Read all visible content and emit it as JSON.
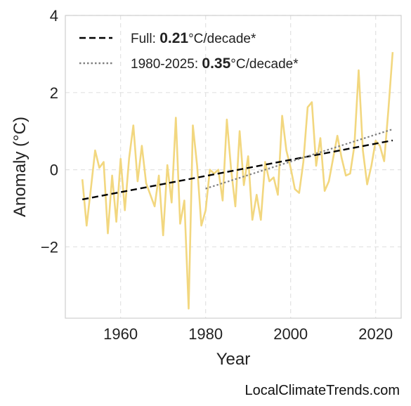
{
  "chart_data": {
    "type": "line",
    "xlabel": "Year",
    "ylabel": "Anomaly (°C)",
    "xlim": [
      1947,
      2026
    ],
    "ylim": [
      -3.85,
      4
    ],
    "xticks": [
      1960,
      1980,
      2000,
      2020
    ],
    "yticks": [
      -2,
      0,
      2,
      4
    ],
    "ytick_labels": [
      "−2",
      "0",
      "2",
      "4"
    ],
    "grid": true,
    "legend_position": "top-left",
    "series": [
      {
        "style": "line",
        "color": "#f2d77f",
        "x": [
          1951,
          1952,
          1953,
          1954,
          1955,
          1956,
          1957,
          1958,
          1959,
          1960,
          1961,
          1962,
          1963,
          1964,
          1965,
          1966,
          1967,
          1968,
          1969,
          1970,
          1971,
          1972,
          1973,
          1974,
          1975,
          1976,
          1977,
          1978,
          1979,
          1980,
          1981,
          1982,
          1983,
          1984,
          1985,
          1986,
          1987,
          1988,
          1989,
          1990,
          1991,
          1992,
          1993,
          1994,
          1995,
          1996,
          1997,
          1998,
          1999,
          2000,
          2001,
          2002,
          2003,
          2004,
          2005,
          2006,
          2007,
          2008,
          2009,
          2010,
          2011,
          2012,
          2013,
          2014,
          2015,
          2016,
          2017,
          2018,
          2019,
          2020,
          2021,
          2022,
          2023,
          2024
        ],
        "y": [
          -0.25,
          -1.45,
          -0.5,
          0.5,
          0.05,
          0.2,
          -1.65,
          -0.15,
          -1.35,
          0.28,
          -1.05,
          0.3,
          1.15,
          -0.3,
          0.62,
          -0.35,
          -0.65,
          -0.95,
          -0.15,
          -1.7,
          0.12,
          -0.85,
          1.35,
          -1.4,
          -0.8,
          -3.6,
          1.15,
          0.1,
          -1.45,
          -1.05,
          0.0,
          -0.1,
          0.0,
          -0.8,
          1.3,
          0.0,
          -0.95,
          1.0,
          -0.4,
          0.35,
          -1.3,
          -0.65,
          -1.3,
          0.2,
          -0.3,
          -0.2,
          -0.65,
          1.4,
          0.5,
          0.05,
          -0.5,
          -0.6,
          0.2,
          1.62,
          1.75,
          0.1,
          0.82,
          -0.55,
          -0.3,
          0.3,
          0.88,
          0.3,
          -0.15,
          -0.1,
          0.62,
          2.58,
          0.5,
          -0.38,
          0.1,
          0.75,
          0.62,
          0.22,
          1.55,
          3.05
        ]
      }
    ],
    "trend_lines": [
      {
        "style": "dashed",
        "color": "#000000",
        "x": [
          1951,
          2024
        ],
        "y": [
          -0.77,
          0.76
        ]
      },
      {
        "style": "dotted",
        "color": "#808080",
        "x": [
          1980,
          2024
        ],
        "y": [
          -0.49,
          1.05
        ]
      }
    ],
    "legend": [
      {
        "prefix": "Full: ",
        "bold": "0.21",
        "suffix": "°C/decade*",
        "style": "dashed",
        "color": "#000000"
      },
      {
        "prefix": "1980-2025: ",
        "bold": "0.35",
        "suffix": "°C/decade*",
        "style": "dotted",
        "color": "#808080"
      }
    ]
  },
  "credit": "LocalClimateTrends.com"
}
